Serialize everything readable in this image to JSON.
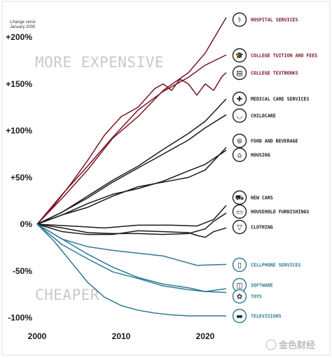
{
  "chart_data": {
    "type": "line",
    "subtitle": "Change since January 2000",
    "y_tick_labels": [
      "+200%",
      "+150%",
      "+100%",
      "+50%",
      "0%",
      "-50%",
      "-100%"
    ],
    "y_ticks": [
      200,
      150,
      100,
      50,
      0,
      -50,
      -100
    ],
    "x_tick_labels": [
      "2000",
      "2010",
      "2020"
    ],
    "x_ticks": [
      2000,
      2010,
      2020
    ],
    "xlim": [
      2000,
      2023
    ],
    "ylim": [
      -100,
      200
    ],
    "annotations": {
      "more_expensive": "MORE EXPENSIVE",
      "cheaper": "CHEAPER"
    },
    "colors": {
      "red": "#7a1424",
      "black": "#1a1a1a",
      "teal": "#2e7a91"
    },
    "series": [
      {
        "name": "HOSPITAL SERVICES",
        "color": "red",
        "icon": "hospital-icon",
        "x": [
          2000,
          2003,
          2006,
          2009,
          2012,
          2015,
          2018,
          2020,
          2022.5
        ],
        "y": [
          0,
          28,
          58,
          92,
          115,
          143,
          162,
          183,
          221
        ]
      },
      {
        "name": "COLLEGE TUITION AND FEES",
        "color": "red",
        "icon": "graduation-cap-icon",
        "x": [
          2000,
          2003,
          2006,
          2009,
          2012,
          2015,
          2018,
          2020,
          2022.5
        ],
        "y": [
          0,
          32,
          62,
          93,
          122,
          142,
          157,
          170,
          181
        ]
      },
      {
        "name": "COLLEGE TEXTBOOKS",
        "color": "red",
        "icon": "book-icon",
        "x": [
          2000,
          2002,
          2004,
          2006,
          2008,
          2010,
          2012,
          2014,
          2015,
          2016,
          2017,
          2018,
          2019,
          2020,
          2021,
          2022,
          2022.5
        ],
        "y": [
          0,
          20,
          43,
          68,
          95,
          115,
          125,
          145,
          150,
          143,
          155,
          150,
          138,
          150,
          143,
          158,
          162
        ]
      },
      {
        "name": "MEDICAL CARE SERVICES",
        "color": "black",
        "icon": "medical-kit-icon",
        "x": [
          2000,
          2003,
          2006,
          2009,
          2012,
          2015,
          2018,
          2020,
          2022.5
        ],
        "y": [
          0,
          13,
          30,
          47,
          62,
          80,
          97,
          110,
          134
        ]
      },
      {
        "name": "CHILDCARE",
        "color": "black",
        "icon": "stroller-icon",
        "x": [
          2000,
          2003,
          2006,
          2009,
          2012,
          2015,
          2018,
          2020,
          2022.5
        ],
        "y": [
          0,
          13,
          28,
          45,
          60,
          75,
          90,
          103,
          117
        ]
      },
      {
        "name": "FOOD AND BEVERAGE",
        "color": "black",
        "icon": "food-icon",
        "x": [
          2000,
          2003,
          2006,
          2009,
          2012,
          2015,
          2018,
          2020,
          2022.5
        ],
        "y": [
          0,
          10,
          18,
          30,
          40,
          45,
          50,
          58,
          82
        ]
      },
      {
        "name": "HOUSING",
        "color": "black",
        "icon": "house-icon",
        "x": [
          2000,
          2003,
          2006,
          2009,
          2012,
          2015,
          2018,
          2020,
          2022.5
        ],
        "y": [
          0,
          10,
          22,
          32,
          38,
          46,
          57,
          64,
          79
        ]
      },
      {
        "name": "NEW CARS",
        "color": "black",
        "icon": "car-icon",
        "x": [
          2000,
          2004,
          2008,
          2012,
          2016,
          2019,
          2021,
          2022.5
        ],
        "y": [
          0,
          -2,
          -4,
          -1,
          -1,
          -2,
          5,
          20
        ]
      },
      {
        "name": "HOUSEHOLD FURNISHINGS",
        "color": "black",
        "icon": "sofa-icon",
        "x": [
          2000,
          2003,
          2006,
          2009,
          2012,
          2015,
          2018,
          2020,
          2021,
          2022.5
        ],
        "y": [
          0,
          -4,
          -9,
          -10,
          -10,
          -11,
          -10,
          -5,
          3,
          12
        ]
      },
      {
        "name": "CLOTHING",
        "color": "black",
        "icon": "shirt-icon",
        "x": [
          2000,
          2003,
          2006,
          2009,
          2012,
          2015,
          2018,
          2019,
          2020,
          2021,
          2022.5
        ],
        "y": [
          0,
          -8,
          -11,
          -11,
          -7,
          -8,
          -9,
          -12,
          -14,
          -8,
          -4
        ]
      },
      {
        "name": "CELLPHONE SERVICES",
        "color": "teal",
        "icon": "phone-icon",
        "x": [
          2000,
          2003,
          2006,
          2009,
          2012,
          2015,
          2017,
          2019,
          2022.5
        ],
        "y": [
          0,
          -16,
          -24,
          -28,
          -31,
          -34,
          -39,
          -44,
          -43
        ]
      },
      {
        "name": "SOFTWARE",
        "color": "teal",
        "icon": "software-icon",
        "x": [
          2000,
          2003,
          2006,
          2009,
          2012,
          2015,
          2018,
          2020,
          2022.5
        ],
        "y": [
          0,
          -16,
          -32,
          -46,
          -57,
          -64,
          -68,
          -72,
          -69
        ]
      },
      {
        "name": "TOYS",
        "color": "teal",
        "icon": "toy-icon",
        "x": [
          2000,
          2003,
          2006,
          2009,
          2012,
          2015,
          2018,
          2020,
          2022.5
        ],
        "y": [
          0,
          -22,
          -37,
          -51,
          -58,
          -66,
          -70,
          -72,
          -73
        ]
      },
      {
        "name": "TELEVISIONS",
        "color": "teal",
        "icon": "tv-icon",
        "x": [
          2000,
          2002,
          2004,
          2006,
          2008,
          2010,
          2012,
          2014,
          2016,
          2018,
          2020,
          2022.5
        ],
        "y": [
          0,
          -18,
          -40,
          -62,
          -78,
          -87,
          -92,
          -95,
          -97,
          -98,
          -98,
          -98
        ]
      }
    ]
  },
  "watermark": "金色财经"
}
